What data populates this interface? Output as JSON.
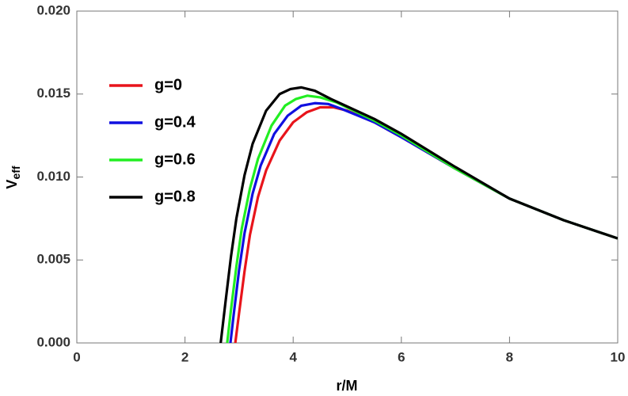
{
  "chart_data": {
    "type": "line",
    "xlabel": "r/M",
    "ylabel": {
      "text": "V",
      "subscript": "eff"
    },
    "xlim": [
      0,
      10
    ],
    "ylim": [
      0,
      0.02
    ],
    "xticks": [
      0,
      2,
      4,
      6,
      8,
      10
    ],
    "yticks": [
      {
        "value": 0,
        "label": "0.000"
      },
      {
        "value": 0.005,
        "label": "0.005"
      },
      {
        "value": 0.01,
        "label": "0.010"
      },
      {
        "value": 0.015,
        "label": "0.015"
      },
      {
        "value": 0.02,
        "label": "0.020"
      }
    ],
    "legend": "upper-left",
    "series": [
      {
        "name": "g=0",
        "color": "#e8141b",
        "x": [
          2.93,
          3.0,
          3.1,
          3.2,
          3.35,
          3.5,
          3.75,
          4.0,
          4.25,
          4.5,
          4.75,
          5.0,
          5.5,
          6,
          7,
          8,
          9,
          10
        ],
        "values": [
          0,
          0.0018,
          0.0043,
          0.0065,
          0.0088,
          0.0104,
          0.0122,
          0.0133,
          0.0139,
          0.0142,
          0.0142,
          0.014,
          0.0133,
          0.0124,
          0.0105,
          0.0087,
          0.0074,
          0.0063
        ]
      },
      {
        "name": "g=0.4",
        "color": "#1010e0",
        "x": [
          2.84,
          2.9,
          3.0,
          3.1,
          3.25,
          3.4,
          3.65,
          3.9,
          4.15,
          4.4,
          4.65,
          4.9,
          5.5,
          6,
          7,
          8,
          9,
          10
        ],
        "values": [
          0,
          0.0017,
          0.0044,
          0.0066,
          0.009,
          0.0107,
          0.0126,
          0.0137,
          0.0143,
          0.01445,
          0.0144,
          0.0141,
          0.0133,
          0.0124,
          0.0105,
          0.0087,
          0.0074,
          0.0063
        ]
      },
      {
        "name": "g=0.6",
        "color": "#22ee22",
        "x": [
          2.78,
          2.85,
          2.95,
          3.05,
          3.2,
          3.35,
          3.6,
          3.85,
          4.05,
          4.26,
          4.5,
          4.8,
          5.5,
          6,
          7,
          8,
          9,
          10
        ],
        "values": [
          0,
          0.002,
          0.0046,
          0.0069,
          0.0093,
          0.0111,
          0.0131,
          0.0143,
          0.0147,
          0.0149,
          0.0148,
          0.0145,
          0.0134,
          0.0125,
          0.0105,
          0.0087,
          0.0074,
          0.0063
        ]
      },
      {
        "name": "g=0.8",
        "color": "#000000",
        "x": [
          2.66,
          2.75,
          2.85,
          2.95,
          3.1,
          3.25,
          3.5,
          3.75,
          3.95,
          4.15,
          4.4,
          4.7,
          5.5,
          6,
          7,
          8,
          9,
          10
        ],
        "values": [
          0,
          0.0025,
          0.0052,
          0.0075,
          0.0101,
          0.012,
          0.014,
          0.015,
          0.0153,
          0.0154,
          0.0152,
          0.0147,
          0.0135,
          0.0126,
          0.0106,
          0.0087,
          0.0074,
          0.0063
        ]
      }
    ]
  }
}
